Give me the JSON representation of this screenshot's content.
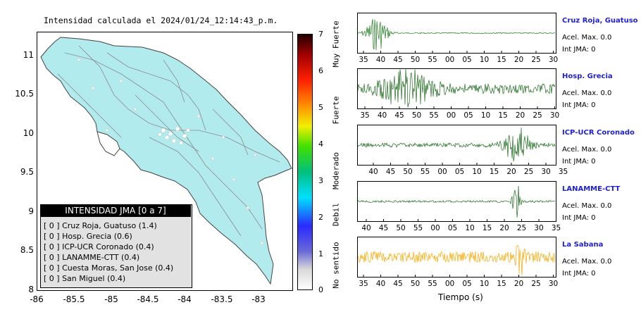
{
  "map": {
    "title": "Intensidad calculada el 2024/01/24_12:14:43_p.m.",
    "y_ticks": [
      "11",
      "10.5",
      "10",
      "9.5",
      "9",
      "8.5",
      "8"
    ],
    "x_ticks": [
      "-86",
      "-85.5",
      "-85",
      "-84.5",
      "-84",
      "-83.5",
      "-83"
    ],
    "land_color": "#b2ebee",
    "legend": {
      "title": "INTENSIDAD JMA [0 a 7]",
      "rows": [
        "[ 0 ]  Cruz Roja, Guatuso (1.4)",
        "[ 0 ]  Hosp. Grecia (0.6)",
        "[ 0 ]  ICP-UCR Coronado (0.4)",
        "[ 0 ]  LANAMME-CTT (0.4)",
        "[ 0 ]  Cuesta Moras, San Jose (0.4)",
        "[ 0 ]  San Miguel (0.4)"
      ]
    }
  },
  "colorbar": {
    "ticks": [
      "7",
      "6",
      "5",
      "4",
      "3",
      "2",
      "1",
      "0"
    ],
    "labels": [
      "Muy Fuerte",
      "Fuerte",
      "Moderado",
      "Debil",
      "No sentido"
    ]
  },
  "traces": {
    "xlabel": "Tiempo (s)",
    "stations": [
      {
        "name": "Cruz Roja, Guatuso",
        "acel": "Acel. Max. 0.0",
        "int": "Int JMA: 0",
        "color": "#1f7a1f",
        "ticks": [
          "35",
          "40",
          "45",
          "50",
          "55",
          "00",
          "05",
          "10",
          "15",
          "20",
          "25",
          "30"
        ]
      },
      {
        "name": "Hosp. Grecia",
        "acel": "Acel. Max. 0.0",
        "int": "Int JMA: 0",
        "color": "#1f6b1f",
        "ticks": [
          "35",
          "40",
          "45",
          "50",
          "55",
          "00",
          "05",
          "10",
          "15",
          "20",
          "25",
          "30"
        ]
      },
      {
        "name": "ICP-UCR Coronado",
        "acel": "Acel. Max. 0.0",
        "int": "Int JMA: 0",
        "color": "#1f6b1f",
        "ticks": [
          "40",
          "45",
          "50",
          "55",
          "00",
          "05",
          "10",
          "15",
          "20",
          "25",
          "30",
          "35"
        ]
      },
      {
        "name": "LANAMME-CTT",
        "acel": "Acel. Max. 0.0",
        "int": "Int JMA: 0",
        "color": "#1f6b1f",
        "ticks": [
          "40",
          "45",
          "50",
          "55",
          "00",
          "05",
          "10",
          "15",
          "20",
          "25",
          "30",
          "35"
        ]
      },
      {
        "name": "La Sabana",
        "acel": "Acel. Max. 0.0",
        "int": "Int JMA: 0",
        "color": "#f5a800",
        "ticks": [
          "35",
          "40",
          "45",
          "50",
          "55",
          "00",
          "05",
          "10",
          "15",
          "20",
          "25",
          "30"
        ]
      }
    ]
  }
}
